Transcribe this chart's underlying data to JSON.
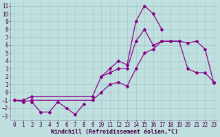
{
  "xlabel": "Windchill (Refroidissement éolien,°C)",
  "background_color": "#c0e0e0",
  "grid_color": "#a0c8c8",
  "line_color": "#880088",
  "xlim": [
    -0.5,
    23.5
  ],
  "ylim": [
    -3.5,
    11.5
  ],
  "xticks": [
    0,
    1,
    2,
    3,
    4,
    5,
    6,
    7,
    8,
    9,
    10,
    11,
    12,
    13,
    14,
    15,
    16,
    17,
    18,
    19,
    20,
    21,
    22,
    23
  ],
  "yticks": [
    -3,
    -2,
    -1,
    0,
    1,
    2,
    3,
    4,
    5,
    6,
    7,
    8,
    9,
    10,
    11
  ],
  "line1_x": [
    10,
    11,
    12,
    13,
    14,
    15,
    16,
    17
  ],
  "line1_y": [
    2,
    3,
    4,
    3.5,
    9,
    11,
    10,
    8
  ],
  "line2_x": [
    0,
    1,
    2,
    9,
    10,
    11,
    12,
    13,
    14,
    15,
    16,
    17,
    18,
    19,
    20,
    21,
    22,
    23
  ],
  "line2_y": [
    -1,
    -1,
    -0.5,
    -0.5,
    2,
    2.5,
    3,
    3,
    6.5,
    8,
    6,
    6.5,
    6.5,
    6.5,
    6.3,
    6.5,
    5.5,
    1.2
  ],
  "line3_x": [
    0,
    1,
    2,
    9,
    10,
    11,
    12,
    13,
    14,
    15,
    16,
    17,
    18,
    19,
    20,
    21,
    22,
    23
  ],
  "line3_y": [
    -1,
    -1.2,
    -1,
    -1,
    0,
    1,
    1.3,
    0.8,
    3,
    5,
    5.5,
    6.5,
    6.5,
    6.5,
    3,
    2.5,
    2.5,
    1.3
  ],
  "line4_x": [
    2,
    3,
    4,
    5,
    6,
    7,
    8
  ],
  "line4_y": [
    -1.2,
    -2.5,
    -2.5,
    -1.2,
    -2,
    -2.8,
    -1.5
  ],
  "xlabel_fontsize": 6,
  "tick_fontsize": 5.5
}
